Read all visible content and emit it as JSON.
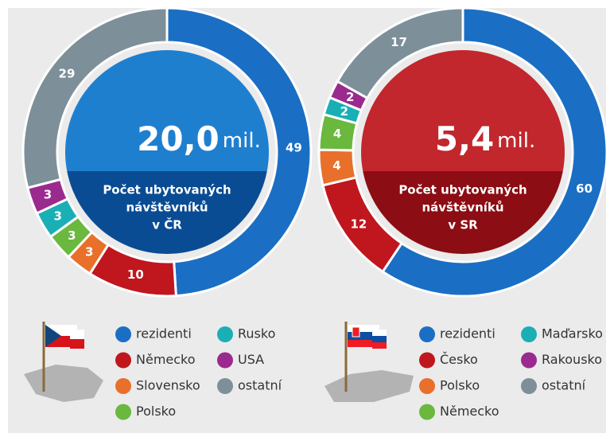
{
  "chart_data": [
    {
      "type": "donut",
      "categories": [
        "rezidenti",
        "Německo",
        "Slovensko",
        "Polsko",
        "Rusko",
        "USA",
        "ostatní"
      ],
      "values": [
        49,
        10,
        3,
        3,
        3,
        3,
        29
      ],
      "colors": [
        "#1a6fc4",
        "#c0161e",
        "#e8702a",
        "#6ab83e",
        "#1aafb5",
        "#9b2a8f",
        "#7d8f99"
      ],
      "center_value": "20,0",
      "center_unit": "mil.",
      "center_title": [
        "Počet ubytovaných",
        "návštěvníků",
        "v ČR"
      ],
      "center_colors": [
        "#1f7fcf",
        "#0a4c94"
      ]
    },
    {
      "type": "donut",
      "categories": [
        "rezidenti",
        "Česko",
        "Polsko",
        "Německo",
        "Maďarsko",
        "Rakousko",
        "ostatní"
      ],
      "values": [
        60,
        12,
        4,
        4,
        2,
        2,
        17
      ],
      "colors": [
        "#1a6fc4",
        "#c0161e",
        "#e8702a",
        "#6ab83e",
        "#1aafb5",
        "#9b2a8f",
        "#7d8f99"
      ],
      "center_value": "5,4",
      "center_unit": "mil.",
      "center_title": [
        "Počet ubytovaných",
        "návštěvníků",
        "v SR"
      ],
      "center_colors": [
        "#c1272d",
        "#8c0d13"
      ]
    }
  ]
}
